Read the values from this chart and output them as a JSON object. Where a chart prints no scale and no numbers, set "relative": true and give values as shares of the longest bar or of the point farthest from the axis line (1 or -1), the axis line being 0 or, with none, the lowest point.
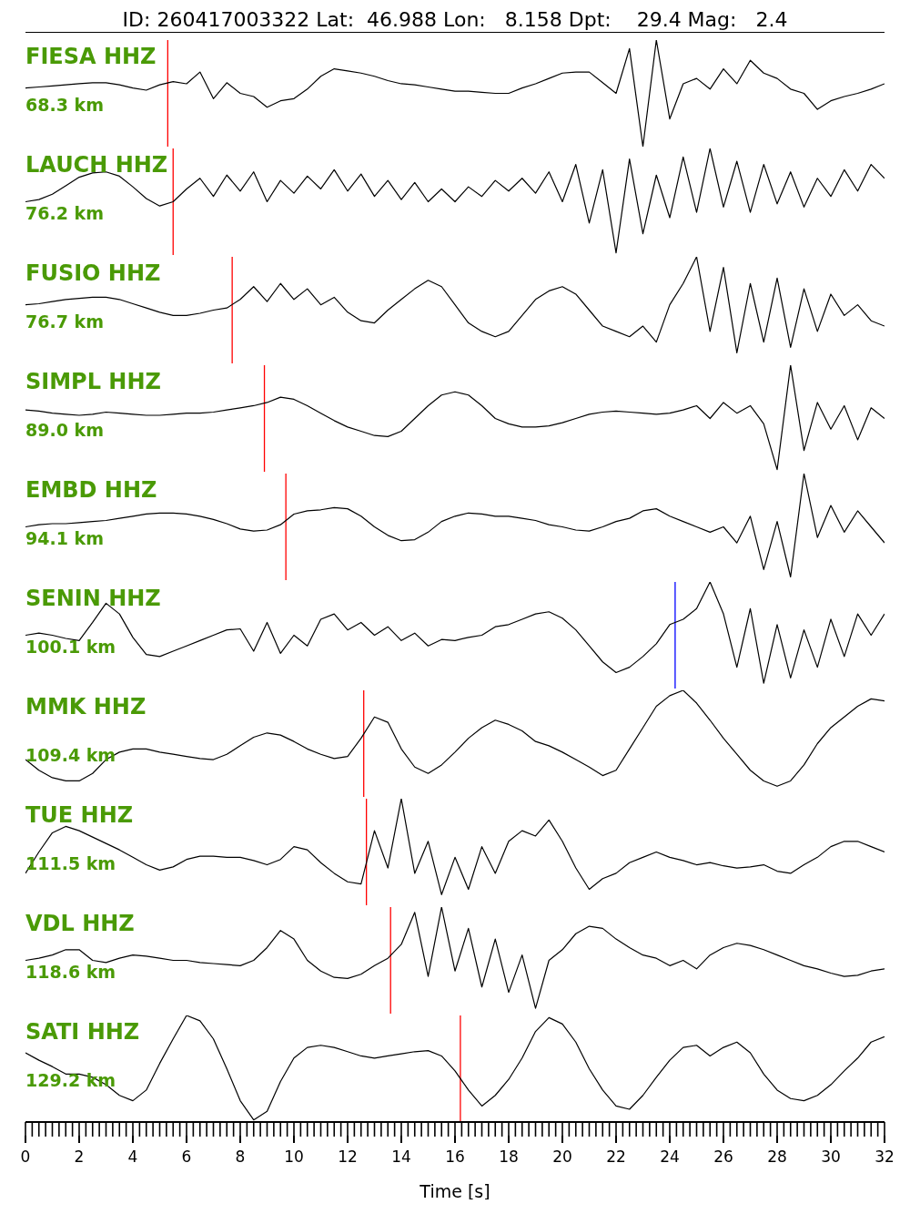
{
  "chart_data": [
    {
      "type": "line",
      "title": "FIESA HHZ",
      "subtitle": "68.3 km",
      "annotations": [
        "ID: 260417003322 Lat:  46.988 Lon:   8.158 Dpt:    29.4 Mag:   2.4"
      ],
      "relative": true,
      "xlim": [
        0,
        32
      ],
      "tick_labels": false,
      "x": [
        0,
        0.5,
        1,
        1.5,
        2,
        2.5,
        3,
        3.5,
        4,
        4.5,
        5,
        5.5,
        6,
        6.5,
        7,
        7.5,
        8,
        8.5,
        9,
        9.5,
        10,
        10.5,
        11,
        11.5,
        12,
        12.5,
        13,
        13.5,
        14,
        14.5,
        15,
        15.5,
        16,
        16.5,
        17,
        17.5,
        18,
        18.5,
        19,
        19.5,
        20,
        20.5,
        21,
        21.5,
        22,
        22.5,
        23,
        23.5,
        24,
        24.5,
        25,
        25.5,
        26,
        26.5,
        27,
        27.5,
        28,
        28.5,
        29,
        29.5,
        30,
        30.5,
        31,
        31.5,
        32
      ],
      "series": [
        {
          "color": "#000000",
          "values": [
            0.55,
            0.56,
            0.57,
            0.58,
            0.59,
            0.6,
            0.6,
            0.58,
            0.55,
            0.53,
            0.58,
            0.61,
            0.59,
            0.7,
            0.45,
            0.6,
            0.5,
            0.47,
            0.37,
            0.43,
            0.45,
            0.54,
            0.66,
            0.73,
            0.71,
            0.69,
            0.66,
            0.62,
            0.59,
            0.58,
            0.56,
            0.54,
            0.52,
            0.52,
            0.51,
            0.5,
            0.5,
            0.55,
            0.59,
            0.64,
            0.69,
            0.7,
            0.7,
            0.6,
            0.5,
            0.92,
            0,
            1,
            0.26,
            0.59,
            0.64,
            0.54,
            0.73,
            0.59,
            0.81,
            0.69,
            0.64,
            0.54,
            0.5,
            0.35,
            0.43,
            0.47,
            0.5,
            0.54,
            0.59
          ]
        }
      ],
      "ref_lines": [
        {
          "axis": "x",
          "value": 5.3,
          "color": "#ff0000"
        }
      ]
    },
    {
      "type": "line",
      "title": "LAUCH HHZ",
      "subtitle": "76.2 km",
      "relative": true,
      "xlim": [
        0,
        32
      ],
      "tick_labels": false,
      "x": [
        0,
        0.5,
        1,
        1.5,
        2,
        2.5,
        3,
        3.5,
        4,
        4.5,
        5,
        5.5,
        6,
        6.5,
        7,
        7.5,
        8,
        8.5,
        9,
        9.5,
        10,
        10.5,
        11,
        11.5,
        12,
        12.5,
        13,
        13.5,
        14,
        14.5,
        15,
        15.5,
        16,
        16.5,
        17,
        17.5,
        18,
        18.5,
        19,
        19.5,
        20,
        20.5,
        21,
        21.5,
        22,
        22.5,
        23,
        23.5,
        24,
        24.5,
        25,
        25.5,
        26,
        26.5,
        27,
        27.5,
        28,
        28.5,
        29,
        29.5,
        30,
        30.5,
        31,
        31.5,
        32
      ],
      "series": [
        {
          "color": "#000000",
          "values": [
            0.5,
            0.52,
            0.57,
            0.65,
            0.73,
            0.77,
            0.78,
            0.74,
            0.64,
            0.53,
            0.46,
            0.5,
            0.62,
            0.72,
            0.55,
            0.75,
            0.6,
            0.78,
            0.5,
            0.7,
            0.58,
            0.74,
            0.62,
            0.8,
            0.6,
            0.76,
            0.55,
            0.7,
            0.52,
            0.68,
            0.5,
            0.62,
            0.5,
            0.64,
            0.55,
            0.7,
            0.6,
            0.72,
            0.58,
            0.78,
            0.5,
            0.85,
            0.3,
            0.8,
            0.02,
            0.9,
            0.2,
            0.75,
            0.35,
            0.92,
            0.4,
            1,
            0.45,
            0.88,
            0.4,
            0.85,
            0.48,
            0.78,
            0.45,
            0.72,
            0.55,
            0.8,
            0.6,
            0.85,
            0.72
          ]
        }
      ],
      "ref_lines": [
        {
          "axis": "x",
          "value": 5.5,
          "color": "#ff0000"
        }
      ]
    },
    {
      "type": "line",
      "title": "FUSIO HHZ",
      "subtitle": "76.7 km",
      "relative": true,
      "xlim": [
        0,
        32
      ],
      "tick_labels": false,
      "x": [
        0,
        0.5,
        1,
        1.5,
        2,
        2.5,
        3,
        3.5,
        4,
        4.5,
        5,
        5.5,
        6,
        6.5,
        7,
        7.5,
        8,
        8.5,
        9,
        9.5,
        10,
        10.5,
        11,
        11.5,
        12,
        12.5,
        13,
        13.5,
        14,
        14.5,
        15,
        15.5,
        16,
        16.5,
        17,
        17.5,
        18,
        18.5,
        19,
        19.5,
        20,
        20.5,
        21,
        21.5,
        22,
        22.5,
        23,
        23.5,
        24,
        24.5,
        25,
        25.5,
        26,
        26.5,
        27,
        27.5,
        28,
        28.5,
        29,
        29.5,
        30,
        30.5,
        31,
        31.5,
        32
      ],
      "series": [
        {
          "color": "#000000",
          "values": [
            0.55,
            0.56,
            0.58,
            0.6,
            0.61,
            0.62,
            0.62,
            0.6,
            0.56,
            0.52,
            0.48,
            0.45,
            0.45,
            0.47,
            0.5,
            0.52,
            0.6,
            0.72,
            0.58,
            0.75,
            0.6,
            0.7,
            0.55,
            0.62,
            0.48,
            0.4,
            0.38,
            0.5,
            0.6,
            0.7,
            0.78,
            0.72,
            0.55,
            0.38,
            0.3,
            0.25,
            0.3,
            0.45,
            0.6,
            0.68,
            0.72,
            0.65,
            0.5,
            0.35,
            0.3,
            0.25,
            0.35,
            0.2,
            0.55,
            0.75,
            1,
            0.3,
            0.9,
            0.1,
            0.75,
            0.2,
            0.8,
            0.15,
            0.7,
            0.3,
            0.65,
            0.45,
            0.55,
            0.4,
            0.35
          ]
        }
      ],
      "ref_lines": [
        {
          "axis": "x",
          "value": 7.7,
          "color": "#ff0000"
        }
      ]
    },
    {
      "type": "line",
      "title": "SIMPL HHZ",
      "subtitle": "89.0 km",
      "relative": true,
      "xlim": [
        0,
        32
      ],
      "tick_labels": false,
      "x": [
        0,
        0.5,
        1,
        1.5,
        2,
        2.5,
        3,
        3.5,
        4,
        4.5,
        5,
        5.5,
        6,
        6.5,
        7,
        7.5,
        8,
        8.5,
        9,
        9.5,
        10,
        10.5,
        11,
        11.5,
        12,
        12.5,
        13,
        13.5,
        14,
        14.5,
        15,
        15.5,
        16,
        16.5,
        17,
        17.5,
        18,
        18.5,
        19,
        19.5,
        20,
        20.5,
        21,
        21.5,
        22,
        22.5,
        23,
        23.5,
        24,
        24.5,
        25,
        25.5,
        26,
        26.5,
        27,
        27.5,
        28,
        28.5,
        29,
        29.5,
        30,
        30.5,
        31,
        31.5,
        32
      ],
      "series": [
        {
          "color": "#000000",
          "values": [
            0.58,
            0.57,
            0.55,
            0.54,
            0.53,
            0.54,
            0.56,
            0.55,
            0.54,
            0.53,
            0.53,
            0.54,
            0.55,
            0.55,
            0.56,
            0.58,
            0.6,
            0.62,
            0.65,
            0.7,
            0.68,
            0.62,
            0.55,
            0.48,
            0.42,
            0.38,
            0.34,
            0.33,
            0.38,
            0.5,
            0.62,
            0.72,
            0.75,
            0.72,
            0.62,
            0.5,
            0.45,
            0.42,
            0.42,
            0.43,
            0.46,
            0.5,
            0.54,
            0.56,
            0.57,
            0.56,
            0.55,
            0.54,
            0.55,
            0.58,
            0.62,
            0.5,
            0.65,
            0.55,
            0.62,
            0.45,
            0.02,
            1,
            0.2,
            0.65,
            0.4,
            0.62,
            0.3,
            0.6,
            0.5
          ]
        }
      ],
      "ref_lines": [
        {
          "axis": "x",
          "value": 8.9,
          "color": "#ff0000"
        }
      ]
    },
    {
      "type": "line",
      "title": "EMBD HHZ",
      "subtitle": "94.1 km",
      "relative": true,
      "xlim": [
        0,
        32
      ],
      "tick_labels": false,
      "x": [
        0,
        0.5,
        1,
        1.5,
        2,
        2.5,
        3,
        3.5,
        4,
        4.5,
        5,
        5.5,
        6,
        6.5,
        7,
        7.5,
        8,
        8.5,
        9,
        9.5,
        10,
        10.5,
        11,
        11.5,
        12,
        12.5,
        13,
        13.5,
        14,
        14.5,
        15,
        15.5,
        16,
        16.5,
        17,
        17.5,
        18,
        18.5,
        19,
        19.5,
        20,
        20.5,
        21,
        21.5,
        22,
        22.5,
        23,
        23.5,
        24,
        24.5,
        25,
        25.5,
        26,
        26.5,
        27,
        27.5,
        28,
        28.5,
        29,
        29.5,
        30,
        30.5,
        31,
        31.5,
        32
      ],
      "series": [
        {
          "color": "#000000",
          "values": [
            0.5,
            0.52,
            0.53,
            0.53,
            0.54,
            0.55,
            0.56,
            0.58,
            0.6,
            0.62,
            0.63,
            0.63,
            0.62,
            0.6,
            0.57,
            0.53,
            0.48,
            0.46,
            0.47,
            0.52,
            0.62,
            0.65,
            0.66,
            0.68,
            0.67,
            0.6,
            0.5,
            0.42,
            0.37,
            0.38,
            0.45,
            0.55,
            0.6,
            0.63,
            0.62,
            0.6,
            0.6,
            0.58,
            0.56,
            0.52,
            0.5,
            0.47,
            0.46,
            0.5,
            0.55,
            0.58,
            0.65,
            0.67,
            0.6,
            0.55,
            0.5,
            0.45,
            0.5,
            0.35,
            0.6,
            0.1,
            0.55,
            0.03,
            1,
            0.4,
            0.7,
            0.45,
            0.65,
            0.5,
            0.35
          ]
        }
      ],
      "ref_lines": [
        {
          "axis": "x",
          "value": 9.7,
          "color": "#ff0000"
        }
      ]
    },
    {
      "type": "line",
      "title": "SENIN HHZ",
      "subtitle": "100.1 km",
      "relative": true,
      "xlim": [
        0,
        32
      ],
      "tick_labels": false,
      "x": [
        0,
        0.5,
        1,
        1.5,
        2,
        2.5,
        3,
        3.5,
        4,
        4.5,
        5,
        5.5,
        6,
        6.5,
        7,
        7.5,
        8,
        8.5,
        9,
        9.5,
        10,
        10.5,
        11,
        11.5,
        12,
        12.5,
        13,
        13.5,
        14,
        14.5,
        15,
        15.5,
        16,
        16.5,
        17,
        17.5,
        18,
        18.5,
        19,
        19.5,
        20,
        20.5,
        21,
        21.5,
        22,
        22.5,
        23,
        23.5,
        24,
        24.5,
        25,
        25.5,
        26,
        26.5,
        27,
        27.5,
        28,
        28.5,
        29,
        29.5,
        30,
        30.5,
        31,
        31.5,
        32
      ],
      "series": [
        {
          "color": "#000000",
          "values": [
            0.5,
            0.52,
            0.5,
            0.47,
            0.45,
            0.62,
            0.8,
            0.7,
            0.48,
            0.32,
            0.3,
            0.35,
            0.4,
            0.45,
            0.5,
            0.55,
            0.56,
            0.35,
            0.62,
            0.33,
            0.5,
            0.4,
            0.65,
            0.7,
            0.55,
            0.62,
            0.5,
            0.58,
            0.45,
            0.52,
            0.4,
            0.46,
            0.45,
            0.48,
            0.5,
            0.58,
            0.6,
            0.65,
            0.7,
            0.72,
            0.66,
            0.55,
            0.4,
            0.25,
            0.15,
            0.2,
            0.3,
            0.42,
            0.6,
            0.65,
            0.75,
            1,
            0.7,
            0.2,
            0.75,
            0.05,
            0.6,
            0.1,
            0.55,
            0.2,
            0.65,
            0.3,
            0.7,
            0.5,
            0.7
          ]
        }
      ],
      "ref_lines": [
        {
          "axis": "x",
          "value": 24.2,
          "color": "#0000ff"
        }
      ]
    },
    {
      "type": "line",
      "title": "MMK HHZ",
      "subtitle": "109.4 km",
      "relative": true,
      "xlim": [
        0,
        32
      ],
      "tick_labels": false,
      "x": [
        0,
        0.5,
        1,
        1.5,
        2,
        2.5,
        3,
        3.5,
        4,
        4.5,
        5,
        5.5,
        6,
        6.5,
        7,
        7.5,
        8,
        8.5,
        9,
        9.5,
        10,
        10.5,
        11,
        11.5,
        12,
        12.5,
        13,
        13.5,
        14,
        14.5,
        15,
        15.5,
        16,
        16.5,
        17,
        17.5,
        18,
        18.5,
        19,
        19.5,
        20,
        20.5,
        21,
        21.5,
        22,
        22.5,
        23,
        23.5,
        24,
        24.5,
        25,
        25.5,
        26,
        26.5,
        27,
        27.5,
        28,
        28.5,
        29,
        29.5,
        30,
        30.5,
        31,
        31.5,
        32
      ],
      "series": [
        {
          "color": "#000000",
          "values": [
            0.35,
            0.25,
            0.18,
            0.15,
            0.15,
            0.22,
            0.35,
            0.42,
            0.45,
            0.45,
            0.42,
            0.4,
            0.38,
            0.36,
            0.35,
            0.4,
            0.48,
            0.56,
            0.6,
            0.58,
            0.52,
            0.45,
            0.4,
            0.36,
            0.38,
            0.55,
            0.75,
            0.7,
            0.45,
            0.28,
            0.22,
            0.3,
            0.42,
            0.55,
            0.65,
            0.72,
            0.68,
            0.62,
            0.52,
            0.48,
            0.42,
            0.35,
            0.28,
            0.2,
            0.25,
            0.45,
            0.65,
            0.85,
            0.95,
            1,
            0.88,
            0.72,
            0.55,
            0.4,
            0.25,
            0.15,
            0.1,
            0.15,
            0.3,
            0.5,
            0.65,
            0.75,
            0.85,
            0.92,
            0.9
          ]
        }
      ],
      "ref_lines": [
        {
          "axis": "x",
          "value": 12.6,
          "color": "#ff0000"
        }
      ]
    },
    {
      "type": "line",
      "title": "TUE HHZ",
      "subtitle": "111.5 km",
      "relative": true,
      "xlim": [
        0,
        32
      ],
      "tick_labels": false,
      "x": [
        0,
        0.5,
        1,
        1.5,
        2,
        2.5,
        3,
        3.5,
        4,
        4.5,
        5,
        5.5,
        6,
        6.5,
        7,
        7.5,
        8,
        8.5,
        9,
        9.5,
        10,
        10.5,
        11,
        11.5,
        12,
        12.5,
        13,
        13.5,
        14,
        14.5,
        15,
        15.5,
        16,
        16.5,
        17,
        17.5,
        18,
        18.5,
        19,
        19.5,
        20,
        20.5,
        21,
        21.5,
        22,
        22.5,
        23,
        23.5,
        24,
        24.5,
        25,
        25.5,
        26,
        26.5,
        27,
        27.5,
        28,
        28.5,
        29,
        29.5,
        30,
        30.5,
        31,
        31.5,
        32
      ],
      "series": [
        {
          "color": "#000000",
          "values": [
            0.3,
            0.5,
            0.68,
            0.74,
            0.7,
            0.64,
            0.58,
            0.52,
            0.45,
            0.38,
            0.33,
            0.36,
            0.43,
            0.46,
            0.46,
            0.45,
            0.45,
            0.42,
            0.38,
            0.43,
            0.55,
            0.52,
            0.4,
            0.3,
            0.22,
            0.2,
            0.7,
            0.35,
            1,
            0.3,
            0.6,
            0.1,
            0.45,
            0.15,
            0.55,
            0.3,
            0.6,
            0.7,
            0.65,
            0.8,
            0.6,
            0.35,
            0.15,
            0.25,
            0.3,
            0.4,
            0.45,
            0.5,
            0.45,
            0.42,
            0.38,
            0.4,
            0.37,
            0.35,
            0.36,
            0.38,
            0.32,
            0.3,
            0.38,
            0.45,
            0.55,
            0.6,
            0.6,
            0.55,
            0.5
          ]
        }
      ],
      "ref_lines": [
        {
          "axis": "x",
          "value": 12.7,
          "color": "#ff0000"
        }
      ]
    },
    {
      "type": "line",
      "title": "VDL HHZ",
      "subtitle": "118.6 km",
      "relative": true,
      "xlim": [
        0,
        32
      ],
      "tick_labels": false,
      "x": [
        0,
        0.5,
        1,
        1.5,
        2,
        2.5,
        3,
        3.5,
        4,
        4.5,
        5,
        5.5,
        6,
        6.5,
        7,
        7.5,
        8,
        8.5,
        9,
        9.5,
        10,
        10.5,
        11,
        11.5,
        12,
        12.5,
        13,
        13.5,
        14,
        14.5,
        15,
        15.5,
        16,
        16.5,
        17,
        17.5,
        18,
        18.5,
        19,
        19.5,
        20,
        20.5,
        21,
        21.5,
        22,
        22.5,
        23,
        23.5,
        24,
        24.5,
        25,
        25.5,
        26,
        26.5,
        27,
        27.5,
        28,
        28.5,
        29,
        29.5,
        30,
        30.5,
        31,
        31.5,
        32
      ],
      "series": [
        {
          "color": "#000000",
          "values": [
            0.5,
            0.52,
            0.55,
            0.6,
            0.6,
            0.5,
            0.48,
            0.52,
            0.55,
            0.54,
            0.52,
            0.5,
            0.5,
            0.48,
            0.47,
            0.46,
            0.45,
            0.5,
            0.62,
            0.78,
            0.7,
            0.5,
            0.4,
            0.34,
            0.33,
            0.37,
            0.45,
            0.52,
            0.65,
            0.95,
            0.35,
            1,
            0.4,
            0.8,
            0.25,
            0.7,
            0.2,
            0.55,
            0.05,
            0.5,
            0.6,
            0.75,
            0.82,
            0.8,
            0.7,
            0.62,
            0.55,
            0.52,
            0.45,
            0.5,
            0.42,
            0.55,
            0.62,
            0.66,
            0.64,
            0.6,
            0.55,
            0.5,
            0.45,
            0.42,
            0.38,
            0.35,
            0.36,
            0.4,
            0.42
          ]
        }
      ],
      "ref_lines": [
        {
          "axis": "x",
          "value": 13.6,
          "color": "#ff0000"
        }
      ]
    },
    {
      "type": "line",
      "title": "SATI HHZ",
      "subtitle": "129.2 km",
      "relative": true,
      "xlim": [
        0,
        32
      ],
      "tick_labels": "x",
      "xlabel": "Time [s]",
      "x": [
        0,
        0.5,
        1,
        1.5,
        2,
        2.5,
        3,
        3.5,
        4,
        4.5,
        5,
        5.5,
        6,
        6.5,
        7,
        7.5,
        8,
        8.5,
        9,
        9.5,
        10,
        10.5,
        11,
        11.5,
        12,
        12.5,
        13,
        13.5,
        14,
        14.5,
        15,
        15.5,
        16,
        16.5,
        17,
        17.5,
        18,
        18.5,
        19,
        19.5,
        20,
        20.5,
        21,
        21.5,
        22,
        22.5,
        23,
        23.5,
        24,
        24.5,
        25,
        25.5,
        26,
        26.5,
        27,
        27.5,
        28,
        28.5,
        29,
        29.5,
        30,
        30.5,
        31,
        31.5,
        32
      ],
      "series": [
        {
          "color": "#000000",
          "values": [
            0.65,
            0.58,
            0.52,
            0.45,
            0.45,
            0.42,
            0.35,
            0.25,
            0.2,
            0.3,
            0.55,
            0.78,
            1,
            0.95,
            0.78,
            0.5,
            0.2,
            0.02,
            0.1,
            0.38,
            0.6,
            0.7,
            0.72,
            0.7,
            0.66,
            0.62,
            0.6,
            0.62,
            0.64,
            0.66,
            0.67,
            0.62,
            0.48,
            0.3,
            0.15,
            0.25,
            0.4,
            0.6,
            0.85,
            0.98,
            0.92,
            0.75,
            0.5,
            0.3,
            0.15,
            0.12,
            0.25,
            0.42,
            0.58,
            0.7,
            0.72,
            0.62,
            0.7,
            0.75,
            0.65,
            0.45,
            0.3,
            0.22,
            0.2,
            0.25,
            0.35,
            0.48,
            0.6,
            0.75,
            0.8
          ]
        }
      ],
      "ref_lines": [
        {
          "axis": "x",
          "value": 16.2,
          "color": "#ff0000"
        }
      ],
      "xticks": [
        0,
        {
          "value": 0.25,
          "label": null
        },
        {
          "value": 0.5,
          "label": null
        },
        {
          "value": 0.75,
          "label": null
        },
        {
          "value": 1,
          "label": null
        },
        {
          "value": 1.25,
          "label": null
        },
        {
          "value": 1.5,
          "label": null
        },
        {
          "value": 1.75,
          "label": null
        },
        2,
        {
          "value": 2.25,
          "label": null
        },
        {
          "value": 2.5,
          "label": null
        },
        {
          "value": 2.75,
          "label": null
        },
        {
          "value": 3,
          "label": null
        },
        {
          "value": 3.25,
          "label": null
        },
        {
          "value": 3.5,
          "label": null
        },
        {
          "value": 3.75,
          "label": null
        },
        4,
        {
          "value": 4.25,
          "label": null
        },
        {
          "value": 4.5,
          "label": null
        },
        {
          "value": 4.75,
          "label": null
        },
        {
          "value": 5,
          "label": null
        },
        {
          "value": 5.25,
          "label": null
        },
        {
          "value": 5.5,
          "label": null
        },
        {
          "value": 5.75,
          "label": null
        },
        6,
        {
          "value": 6.25,
          "label": null
        },
        {
          "value": 6.5,
          "label": null
        },
        {
          "value": 6.75,
          "label": null
        },
        {
          "value": 7,
          "label": null
        },
        {
          "value": 7.25,
          "label": null
        },
        {
          "value": 7.5,
          "label": null
        },
        {
          "value": 7.75,
          "label": null
        },
        8,
        {
          "value": 8.25,
          "label": null
        },
        {
          "value": 8.5,
          "label": null
        },
        {
          "value": 8.75,
          "label": null
        },
        {
          "value": 9,
          "label": null
        },
        {
          "value": 9.25,
          "label": null
        },
        {
          "value": 9.5,
          "label": null
        },
        {
          "value": 9.75,
          "label": null
        },
        10,
        {
          "value": 10.25,
          "label": null
        },
        {
          "value": 10.5,
          "label": null
        },
        {
          "value": 10.75,
          "label": null
        },
        {
          "value": 11,
          "label": null
        },
        {
          "value": 11.25,
          "label": null
        },
        {
          "value": 11.5,
          "label": null
        },
        {
          "value": 11.75,
          "label": null
        },
        12,
        {
          "value": 12.25,
          "label": null
        },
        {
          "value": 12.5,
          "label": null
        },
        {
          "value": 12.75,
          "label": null
        },
        {
          "value": 13,
          "label": null
        },
        {
          "value": 13.25,
          "label": null
        },
        {
          "value": 13.5,
          "label": null
        },
        {
          "value": 13.75,
          "label": null
        },
        14,
        {
          "value": 14.25,
          "label": null
        },
        {
          "value": 14.5,
          "label": null
        },
        {
          "value": 14.75,
          "label": null
        },
        {
          "value": 15,
          "label": null
        },
        {
          "value": 15.25,
          "label": null
        },
        {
          "value": 15.5,
          "label": null
        },
        {
          "value": 15.75,
          "label": null
        },
        16,
        {
          "value": 16.25,
          "label": null
        },
        {
          "value": 16.5,
          "label": null
        },
        {
          "value": 16.75,
          "label": null
        },
        {
          "value": 17,
          "label": null
        },
        {
          "value": 17.25,
          "label": null
        },
        {
          "value": 17.5,
          "label": null
        },
        {
          "value": 17.75,
          "label": null
        },
        18,
        {
          "value": 18.25,
          "label": null
        },
        {
          "value": 18.5,
          "label": null
        },
        {
          "value": 18.75,
          "label": null
        },
        {
          "value": 19,
          "label": null
        },
        {
          "value": 19.25,
          "label": null
        },
        {
          "value": 19.5,
          "label": null
        },
        {
          "value": 19.75,
          "label": null
        },
        20,
        {
          "value": 20.25,
          "label": null
        },
        {
          "value": 20.5,
          "label": null
        },
        {
          "value": 20.75,
          "label": null
        },
        {
          "value": 21,
          "label": null
        },
        {
          "value": 21.25,
          "label": null
        },
        {
          "value": 21.5,
          "label": null
        },
        {
          "value": 21.75,
          "label": null
        },
        22,
        {
          "value": 22.25,
          "label": null
        },
        {
          "value": 22.5,
          "label": null
        },
        {
          "value": 22.75,
          "label": null
        },
        {
          "value": 23,
          "label": null
        },
        {
          "value": 23.25,
          "label": null
        },
        {
          "value": 23.5,
          "label": null
        },
        {
          "value": 23.75,
          "label": null
        },
        24,
        {
          "value": 24.25,
          "label": null
        },
        {
          "value": 24.5,
          "label": null
        },
        {
          "value": 24.75,
          "label": null
        },
        {
          "value": 25,
          "label": null
        },
        {
          "value": 25.25,
          "label": null
        },
        {
          "value": 25.5,
          "label": null
        },
        {
          "value": 25.75,
          "label": null
        },
        26,
        {
          "value": 26.25,
          "label": null
        },
        {
          "value": 26.5,
          "label": null
        },
        {
          "value": 26.75,
          "label": null
        },
        {
          "value": 27,
          "label": null
        },
        {
          "value": 27.25,
          "label": null
        },
        {
          "value": 27.5,
          "label": null
        },
        {
          "value": 27.75,
          "label": null
        },
        28,
        {
          "value": 28.25,
          "label": null
        },
        {
          "value": 28.5,
          "label": null
        },
        {
          "value": 28.75,
          "label": null
        },
        {
          "value": 29,
          "label": null
        },
        {
          "value": 29.25,
          "label": null
        },
        {
          "value": 29.5,
          "label": null
        },
        {
          "value": 29.75,
          "label": null
        },
        30,
        {
          "value": 30.25,
          "label": null
        },
        {
          "value": 30.5,
          "label": null
        },
        {
          "value": 30.75,
          "label": null
        },
        {
          "value": 31,
          "label": null
        },
        {
          "value": 31.25,
          "label": null
        },
        {
          "value": 31.5,
          "label": null
        },
        {
          "value": 31.75,
          "label": null
        },
        32
      ]
    }
  ]
}
